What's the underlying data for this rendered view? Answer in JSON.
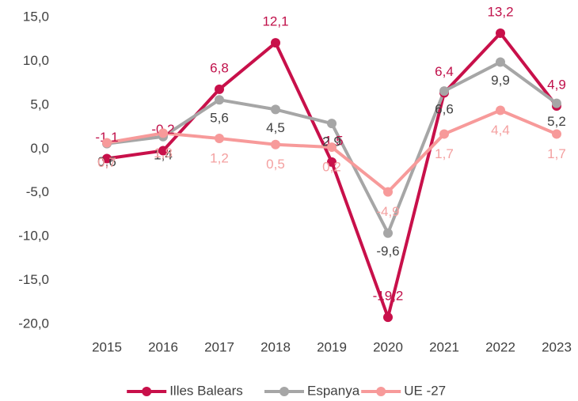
{
  "chart_data": {
    "type": "line",
    "categories": [
      "2015",
      "2016",
      "2017",
      "2018",
      "2019",
      "2020",
      "2021",
      "2022",
      "2023"
    ],
    "series": [
      {
        "name": "Illes Balears",
        "color": "#c8104a",
        "values": [
          -1.1,
          -0.2,
          6.8,
          12.1,
          -1.5,
          -19.2,
          6.4,
          13.2,
          4.9
        ],
        "value_labels": [
          "-1,1",
          "-0,2",
          "6,8",
          "12,1",
          "-1,5",
          "-19,2",
          "6,4",
          "13,2",
          "4,9"
        ]
      },
      {
        "name": "Espanya",
        "color": "#a6a6a6",
        "values": [
          0.6,
          1.4,
          5.6,
          4.5,
          2.9,
          -9.6,
          6.6,
          9.9,
          5.2
        ],
        "value_labels": [
          "0,6",
          "1,4",
          "5,6",
          "4,5",
          "2,9",
          "-9,6",
          "6,6",
          "9,9",
          "5,2"
        ]
      },
      {
        "name": "UE -27",
        "color": "#f79a9a",
        "values": [
          0.7,
          1.8,
          1.2,
          0.5,
          0.2,
          -4.9,
          1.7,
          4.4,
          1.7
        ],
        "value_labels": [
          "0,7",
          "1,8",
          "1,2",
          "0,5",
          "0,2",
          "-4,9",
          "1,7",
          "4,4",
          "1,7"
        ]
      }
    ],
    "ylim": [
      -20,
      15
    ],
    "yticks": [
      {
        "value": -20,
        "label": "-20,0"
      },
      {
        "value": -15,
        "label": "-15,0"
      },
      {
        "value": -10,
        "label": "-10,0"
      },
      {
        "value": -5,
        "label": "-5,0"
      },
      {
        "value": 0,
        "label": "0,0"
      },
      {
        "value": 5,
        "label": "5,0"
      },
      {
        "value": 10,
        "label": "10,0"
      },
      {
        "value": 15,
        "label": "15,0"
      }
    ],
    "grid": false,
    "legend": "bottom"
  }
}
